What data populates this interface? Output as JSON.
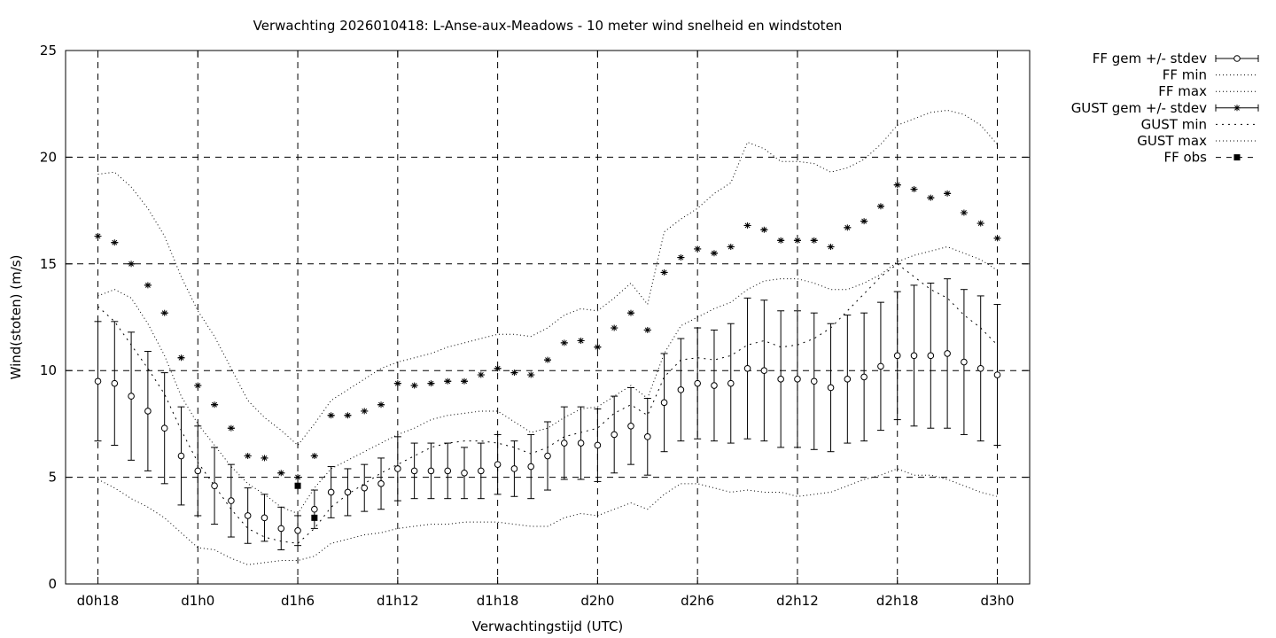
{
  "chart_data": {
    "type": "line",
    "title": "Verwachting 2026010418: L-Anse-aux-Meadows - 10 meter wind snelheid en windstoten",
    "xlabel": "Verwachtingstijd (UTC)",
    "ylabel": "Wind(stoten) (m/s)",
    "xlim": [
      18,
      72
    ],
    "ylim": [
      0,
      25
    ],
    "grid": true,
    "legend_position": "outside-right",
    "x_ticks": [
      {
        "value": 18,
        "label": "d0h18"
      },
      {
        "value": 24,
        "label": "d1h0"
      },
      {
        "value": 30,
        "label": "d1h6"
      },
      {
        "value": 36,
        "label": "d1h12"
      },
      {
        "value": 42,
        "label": "d1h18"
      },
      {
        "value": 48,
        "label": "d2h0"
      },
      {
        "value": 54,
        "label": "d2h6"
      },
      {
        "value": 60,
        "label": "d2h12"
      },
      {
        "value": 66,
        "label": "d2h18"
      },
      {
        "value": 72,
        "label": "d3h0"
      }
    ],
    "y_ticks": [
      0,
      5,
      10,
      15,
      20,
      25
    ],
    "x": [
      18,
      19,
      20,
      21,
      22,
      23,
      24,
      25,
      26,
      27,
      28,
      29,
      30,
      31,
      32,
      33,
      34,
      35,
      36,
      37,
      38,
      39,
      40,
      41,
      42,
      43,
      44,
      45,
      46,
      47,
      48,
      49,
      50,
      51,
      52,
      53,
      54,
      55,
      56,
      57,
      58,
      59,
      60,
      61,
      62,
      63,
      64,
      65,
      66,
      67,
      68,
      69,
      70,
      71,
      72
    ],
    "series": [
      {
        "name": "FF gem +/- stdev",
        "style": "errorbar-open-circle",
        "values": [
          9.5,
          9.4,
          8.8,
          8.1,
          7.3,
          6.0,
          5.3,
          4.6,
          3.9,
          3.2,
          3.1,
          2.6,
          2.5,
          3.5,
          4.3,
          4.3,
          4.5,
          4.7,
          5.4,
          5.3,
          5.3,
          5.3,
          5.2,
          5.3,
          5.6,
          5.4,
          5.5,
          6.0,
          6.6,
          6.6,
          6.5,
          7.0,
          7.4,
          6.9,
          8.5,
          9.1,
          9.4,
          9.3,
          9.4,
          10.1,
          10.0,
          9.6,
          9.6,
          9.5,
          9.2,
          9.6,
          9.7,
          10.2,
          10.7,
          10.7,
          10.7,
          10.8,
          10.4,
          10.1,
          9.8
        ],
        "stdev": [
          2.8,
          2.9,
          3.0,
          2.8,
          2.6,
          2.3,
          2.1,
          1.8,
          1.7,
          1.3,
          1.1,
          1.0,
          0.7,
          0.9,
          1.2,
          1.1,
          1.1,
          1.2,
          1.5,
          1.3,
          1.3,
          1.3,
          1.2,
          1.3,
          1.4,
          1.3,
          1.5,
          1.6,
          1.7,
          1.7,
          1.7,
          1.8,
          1.8,
          1.8,
          2.3,
          2.4,
          2.6,
          2.6,
          2.8,
          3.3,
          3.3,
          3.2,
          3.2,
          3.2,
          3.0,
          3.0,
          3.0,
          3.0,
          3.0,
          3.3,
          3.4,
          3.5,
          3.4,
          3.4,
          3.3
        ]
      },
      {
        "name": "FF min",
        "style": "dotted",
        "values": [
          4.9,
          4.5,
          4.0,
          3.6,
          3.1,
          2.4,
          1.7,
          1.6,
          1.2,
          0.9,
          1.0,
          1.1,
          1.1,
          1.3,
          1.9,
          2.1,
          2.3,
          2.4,
          2.6,
          2.7,
          2.8,
          2.8,
          2.9,
          2.9,
          2.9,
          2.8,
          2.7,
          2.7,
          3.1,
          3.3,
          3.2,
          3.5,
          3.8,
          3.5,
          4.2,
          4.7,
          4.7,
          4.5,
          4.3,
          4.4,
          4.3,
          4.3,
          4.1,
          4.2,
          4.3,
          4.6,
          4.9,
          5.1,
          5.4,
          5.1,
          5.1,
          4.9,
          4.6,
          4.3,
          4.1
        ]
      },
      {
        "name": "FF max",
        "style": "dotted",
        "values": [
          13.5,
          13.8,
          13.4,
          12.2,
          10.7,
          8.8,
          7.5,
          6.5,
          5.5,
          4.7,
          4.2,
          3.6,
          3.3,
          4.5,
          5.4,
          5.8,
          6.2,
          6.6,
          7.0,
          7.3,
          7.7,
          7.9,
          8.0,
          8.1,
          8.1,
          7.6,
          7.1,
          7.3,
          7.8,
          8.2,
          8.3,
          8.8,
          9.3,
          8.7,
          10.8,
          12.1,
          12.5,
          12.9,
          13.2,
          13.8,
          14.2,
          14.3,
          14.3,
          14.1,
          13.8,
          13.8,
          14.1,
          14.5,
          15.1,
          15.4,
          15.6,
          15.8,
          15.5,
          15.2,
          14.7
        ]
      },
      {
        "name": "GUST gem +/- stdev",
        "style": "errorbar-asterisk",
        "values": [
          16.3,
          16.0,
          15.0,
          14.0,
          12.7,
          10.6,
          9.3,
          8.4,
          7.3,
          6.0,
          5.9,
          5.2,
          5.0,
          6.0,
          7.9,
          7.9,
          8.1,
          8.4,
          9.4,
          9.3,
          9.4,
          9.5,
          9.5,
          9.8,
          10.1,
          9.9,
          9.8,
          10.5,
          11.3,
          11.4,
          11.1,
          12.0,
          12.7,
          11.9,
          14.6,
          15.3,
          15.7,
          15.5,
          15.8,
          16.8,
          16.6,
          16.1,
          16.1,
          16.1,
          15.8,
          16.7,
          17.0,
          17.7,
          18.7,
          18.5,
          18.1,
          18.3,
          17.4,
          16.9,
          16.2
        ]
      },
      {
        "name": "GUST min",
        "style": "dotted",
        "values": [
          13.0,
          12.3,
          11.2,
          10.1,
          8.9,
          7.2,
          5.7,
          4.6,
          3.5,
          2.6,
          2.2,
          2.0,
          1.9,
          2.6,
          3.6,
          4.2,
          4.7,
          5.2,
          5.6,
          6.0,
          6.4,
          6.6,
          6.7,
          6.7,
          6.6,
          6.4,
          6.1,
          6.4,
          6.9,
          7.1,
          7.3,
          8.0,
          8.4,
          7.9,
          9.7,
          10.5,
          10.6,
          10.5,
          10.7,
          11.2,
          11.4,
          11.1,
          11.2,
          11.5,
          12.0,
          12.8,
          13.6,
          14.4,
          15.0,
          14.4,
          13.8,
          13.4,
          12.6,
          12.0,
          11.2
        ]
      },
      {
        "name": "GUST max",
        "style": "dotted",
        "values": [
          19.2,
          19.3,
          18.6,
          17.6,
          16.3,
          14.4,
          12.8,
          11.6,
          10.1,
          8.6,
          7.8,
          7.2,
          6.5,
          7.5,
          8.6,
          9.1,
          9.6,
          10.1,
          10.4,
          10.6,
          10.8,
          11.1,
          11.3,
          11.5,
          11.7,
          11.7,
          11.6,
          12.0,
          12.6,
          12.9,
          12.8,
          13.4,
          14.1,
          13.1,
          16.5,
          17.1,
          17.6,
          18.3,
          18.8,
          20.7,
          20.4,
          19.8,
          19.8,
          19.7,
          19.3,
          19.5,
          19.9,
          20.6,
          21.5,
          21.8,
          22.1,
          22.2,
          22.0,
          21.5,
          20.6
        ]
      },
      {
        "name": "FF obs",
        "style": "filled-square",
        "x": [
          30,
          31
        ],
        "values": [
          4.6,
          3.1
        ]
      }
    ]
  }
}
